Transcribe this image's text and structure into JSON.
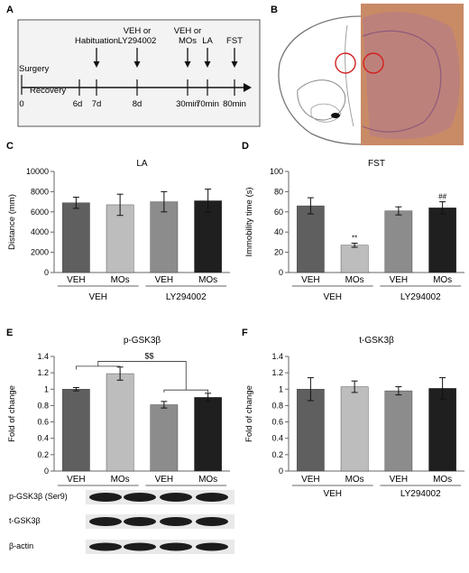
{
  "panels": {
    "A": "A",
    "B": "B",
    "C": "C",
    "D": "D",
    "E": "E",
    "F": "F"
  },
  "timeline": {
    "start_label": "0",
    "surgery": "Surgery",
    "recovery": "Recovery",
    "events": [
      {
        "top": [
          "Habituation"
        ],
        "bottom": "7d"
      },
      {
        "top": [
          "VEH or",
          "LY294002"
        ],
        "bottom": "8d"
      },
      {
        "top": [
          "VEH or",
          "MOs"
        ],
        "bottom": "30min"
      },
      {
        "top": [
          "LA"
        ],
        "bottom": "70min"
      },
      {
        "top": [
          "FST"
        ],
        "bottom": "80min"
      }
    ],
    "extra_ticks": [
      "6d"
    ]
  },
  "colors": {
    "bars": [
      "#5f5f5f",
      "#bdbdbd",
      "#8c8c8c",
      "#1f1f1f"
    ],
    "tissue": "#c98a66",
    "roi_circle": "#d32020"
  },
  "chart_data": [
    {
      "type": "bar",
      "title": "LA",
      "xlabel": "",
      "ylabel": "Distance (mm)",
      "ylim": [
        0,
        10000
      ],
      "yticks": [
        "0",
        "2000",
        "4000",
        "6000",
        "8000",
        "10000"
      ],
      "categories": [
        "VEH",
        "MOs",
        "VEH",
        "MOs"
      ],
      "groups": [
        "VEH",
        "LY294002"
      ],
      "values": [
        6900,
        6700,
        7000,
        7100
      ],
      "errors": [
        550,
        1050,
        1000,
        1150
      ],
      "marks": [
        "",
        "",
        "",
        ""
      ],
      "grid": false
    },
    {
      "type": "bar",
      "title": "FST",
      "xlabel": "",
      "ylabel": "Immobility time (s)",
      "ylim": [
        0,
        100
      ],
      "yticks": [
        "0",
        "20",
        "40",
        "60",
        "80",
        "100"
      ],
      "categories": [
        "VEH",
        "MOs",
        "VEH",
        "MOs"
      ],
      "groups": [
        "VEH",
        "LY294002"
      ],
      "values": [
        66,
        27,
        61,
        64
      ],
      "errors": [
        8,
        2,
        4,
        6
      ],
      "marks": [
        "",
        "**",
        "",
        "##"
      ],
      "grid": false
    },
    {
      "type": "bar",
      "title": "p-GSK3β",
      "xlabel": "",
      "ylabel": "Fold of change",
      "ylim": [
        0,
        1.4
      ],
      "yticks": [
        "0",
        "0.2",
        "0.4",
        "0.6",
        "0.8",
        "1",
        "1.2",
        "1.4"
      ],
      "categories": [
        "VEH",
        "MOs",
        "VEH",
        "MOs"
      ],
      "groups": [
        "VEH",
        "LY294002"
      ],
      "values": [
        1.0,
        1.19,
        0.81,
        0.9
      ],
      "errors": [
        0.02,
        0.08,
        0.04,
        0.05
      ],
      "marks": [
        "",
        "",
        "",
        ""
      ],
      "annotation": "$$",
      "grid": false
    },
    {
      "type": "bar",
      "title": "t-GSK3β",
      "xlabel": "",
      "ylabel": "Fold of change",
      "ylim": [
        0,
        1.4
      ],
      "yticks": [
        "0",
        "0.2",
        "0.4",
        "0.6",
        "0.8",
        "1",
        "1.2",
        "1.4"
      ],
      "categories": [
        "VEH",
        "MOs",
        "VEH",
        "MOs"
      ],
      "groups": [
        "VEH",
        "LY294002"
      ],
      "values": [
        1.0,
        1.03,
        0.98,
        1.01
      ],
      "errors": [
        0.14,
        0.07,
        0.05,
        0.13
      ],
      "marks": [
        "",
        "",
        "",
        ""
      ],
      "grid": false
    }
  ],
  "blot": {
    "labels": [
      "p-GSK3β (Ser9)",
      "t-GSK3β",
      "β-actin"
    ]
  }
}
